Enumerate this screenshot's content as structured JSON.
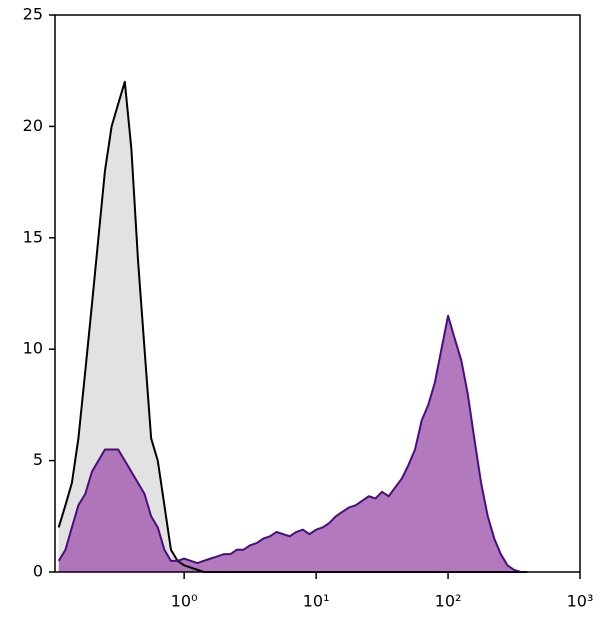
{
  "chart_data": {
    "type": "histogram-overlay",
    "xscale": "log",
    "xlim": [
      0.105,
      1000
    ],
    "xticks": [
      {
        "value": 1,
        "label": "10⁰"
      },
      {
        "value": 10,
        "label": "10¹"
      },
      {
        "value": 100,
        "label": "10²"
      },
      {
        "value": 1000,
        "label": "10³"
      }
    ],
    "ylim": [
      0,
      25
    ],
    "yticks": [
      0,
      5,
      10,
      15,
      20,
      25
    ],
    "grid": false,
    "x": [
      0.112,
      0.126,
      0.141,
      0.158,
      0.178,
      0.2,
      0.224,
      0.251,
      0.282,
      0.316,
      0.355,
      0.398,
      0.447,
      0.501,
      0.562,
      0.631,
      0.708,
      0.794,
      0.891,
      1,
      1.12,
      1.26,
      1.41,
      1.58,
      1.78,
      2,
      2.24,
      2.51,
      2.82,
      3.16,
      3.55,
      3.98,
      4.47,
      5.01,
      5.62,
      6.31,
      7.08,
      7.94,
      8.91,
      10,
      11.2,
      12.6,
      14.1,
      15.8,
      17.8,
      20,
      22.4,
      25.1,
      28.2,
      31.6,
      35.5,
      39.8,
      44.7,
      50.1,
      56.2,
      63.1,
      70.8,
      79.4,
      89.1,
      100,
      112,
      126,
      141,
      158,
      178,
      200,
      224,
      251,
      282,
      316,
      355,
      398
    ],
    "series": [
      {
        "color": "#000000",
        "fill": "#e2e2e2",
        "values": [
          2,
          3,
          4,
          6,
          9,
          12,
          15,
          18,
          20,
          21,
          22,
          19,
          14,
          10,
          6,
          5,
          3,
          1,
          0.5,
          0.3,
          0.2,
          0.1,
          0,
          0,
          0,
          0,
          0,
          0,
          0,
          0,
          0,
          0,
          0,
          0,
          0,
          0,
          0,
          0,
          0,
          0,
          0,
          0,
          0,
          0,
          0,
          0,
          0,
          0,
          0,
          0,
          0,
          0,
          0,
          0,
          0,
          0,
          0,
          0,
          0,
          0,
          0,
          0,
          0,
          0,
          0,
          0,
          0,
          0,
          0,
          0,
          0,
          0
        ]
      },
      {
        "color": "#4b0c82",
        "fill": "#a462b0",
        "values": [
          0.5,
          1,
          2,
          3,
          3.5,
          4.5,
          5,
          5.5,
          5.5,
          5.5,
          5,
          4.5,
          4,
          3.5,
          2.5,
          2,
          1,
          0.5,
          0.5,
          0.6,
          0.5,
          0.4,
          0.5,
          0.6,
          0.7,
          0.8,
          0.8,
          1,
          1,
          1.2,
          1.3,
          1.5,
          1.6,
          1.8,
          1.7,
          1.6,
          1.8,
          1.9,
          1.7,
          1.9,
          2,
          2.2,
          2.5,
          2.7,
          2.9,
          3,
          3.2,
          3.4,
          3.3,
          3.6,
          3.4,
          3.8,
          4.2,
          4.8,
          5.5,
          6.8,
          7.5,
          8.5,
          10,
          11.5,
          10.5,
          9.5,
          8,
          6,
          4,
          2.5,
          1.5,
          0.8,
          0.3,
          0.1,
          0,
          0
        ]
      }
    ]
  }
}
